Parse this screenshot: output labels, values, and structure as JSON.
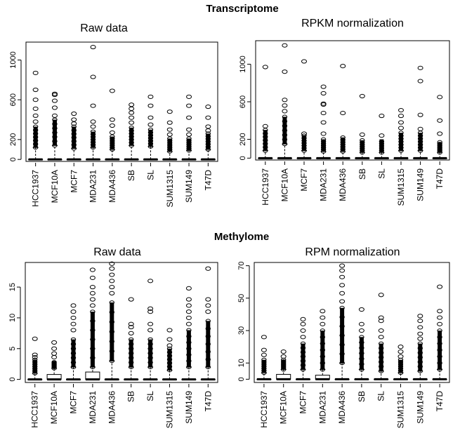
{
  "sections": [
    {
      "title": "Transcriptome"
    },
    {
      "title": "Methylome"
    }
  ],
  "chart_data": [
    {
      "type": "boxplot",
      "section": "Transcriptome",
      "title": "Raw data",
      "ylim": [
        -20,
        1180
      ],
      "yticks": [
        0,
        200,
        600,
        1000
      ],
      "categories": [
        "HCC1937",
        "MCF10A",
        "MCF7",
        "MDA231",
        "MDA436",
        "SB",
        "SL",
        "SUM1315",
        "SUM149",
        "T47D"
      ],
      "boxes": [
        {
          "q1": 0,
          "median": 0,
          "q3": 0,
          "whisker_high": 120,
          "dense_max": 330,
          "outliers": [
            380,
            440,
            510,
            600,
            700,
            870
          ]
        },
        {
          "q1": 0,
          "median": 0,
          "q3": 0,
          "whisker_high": 140,
          "dense_max": 400,
          "outliers": [
            440,
            520,
            590,
            650,
            660
          ]
        },
        {
          "q1": 0,
          "median": 0,
          "q3": 0,
          "whisker_high": 110,
          "dense_max": 330,
          "outliers": [
            360,
            400,
            460
          ]
        },
        {
          "q1": 0,
          "median": 0,
          "q3": 0,
          "whisker_high": 120,
          "dense_max": 280,
          "outliers": [
            330,
            380,
            540,
            830,
            1130
          ]
        },
        {
          "q1": 0,
          "median": 0,
          "q3": 0,
          "whisker_high": 100,
          "dense_max": 230,
          "outliers": [
            270,
            340,
            400,
            690
          ]
        },
        {
          "q1": 0,
          "median": 0,
          "q3": 0,
          "whisker_high": 140,
          "dense_max": 320,
          "outliers": [
            370,
            420,
            470,
            510,
            550
          ]
        },
        {
          "q1": 0,
          "median": 0,
          "q3": 0,
          "whisker_high": 130,
          "dense_max": 300,
          "outliers": [
            350,
            420,
            540,
            630
          ]
        },
        {
          "q1": 0,
          "median": 0,
          "q3": 0,
          "whisker_high": 80,
          "dense_max": 210,
          "outliers": [
            250,
            300,
            370,
            480
          ]
        },
        {
          "q1": 0,
          "median": 0,
          "q3": 0,
          "whisker_high": 90,
          "dense_max": 210,
          "outliers": [
            250,
            300,
            420,
            540,
            630
          ]
        },
        {
          "q1": 0,
          "median": 0,
          "q3": 0,
          "whisker_high": 100,
          "dense_max": 260,
          "outliers": [
            290,
            330,
            420,
            530
          ]
        }
      ]
    },
    {
      "type": "boxplot",
      "section": "Transcriptome",
      "title": "RPKM normalization",
      "ylim": [
        -20,
        1250
      ],
      "yticks": [
        0,
        200,
        600,
        1000
      ],
      "categories": [
        "HCC1937",
        "MCF10A",
        "MCF7",
        "MDA231",
        "MDA436",
        "SB",
        "SL",
        "SUM1315",
        "SUM149",
        "T47D"
      ],
      "boxes": [
        {
          "q1": 0,
          "median": 0,
          "q3": 0,
          "whisker_high": 80,
          "dense_max": 300,
          "outliers": [
            340,
            970
          ]
        },
        {
          "q1": 0,
          "median": 0,
          "q3": 0,
          "whisker_high": 150,
          "dense_max": 440,
          "outliers": [
            500,
            560,
            620,
            920,
            1200
          ]
        },
        {
          "q1": 0,
          "median": 0,
          "q3": 0,
          "whisker_high": 80,
          "dense_max": 240,
          "outliers": [
            260,
            1030
          ]
        },
        {
          "q1": 0,
          "median": 0,
          "q3": 0,
          "whisker_high": 70,
          "dense_max": 200,
          "outliers": [
            260,
            380,
            480,
            570,
            580,
            690,
            760
          ]
        },
        {
          "q1": 0,
          "median": 0,
          "q3": 0,
          "whisker_high": 70,
          "dense_max": 220,
          "outliers": [
            480,
            980
          ]
        },
        {
          "q1": 0,
          "median": 0,
          "q3": 0,
          "whisker_high": 60,
          "dense_max": 190,
          "outliers": [
            250,
            660
          ]
        },
        {
          "q1": 0,
          "median": 0,
          "q3": 0,
          "whisker_high": 60,
          "dense_max": 200,
          "outliers": [
            240,
            450
          ]
        },
        {
          "q1": 0,
          "median": 0,
          "q3": 0,
          "whisker_high": 80,
          "dense_max": 270,
          "outliers": [
            320,
            380,
            450,
            510
          ]
        },
        {
          "q1": 0,
          "median": 0,
          "q3": 0,
          "whisker_high": 80,
          "dense_max": 270,
          "outliers": [
            310,
            460,
            820,
            960
          ]
        },
        {
          "q1": 0,
          "median": 0,
          "q3": 0,
          "whisker_high": 60,
          "dense_max": 170,
          "outliers": [
            260,
            400,
            650
          ]
        }
      ]
    },
    {
      "type": "boxplot",
      "section": "Methylome",
      "title": "Raw data",
      "ylim": [
        -0.5,
        19
      ],
      "yticks": [
        0,
        5,
        10,
        15
      ],
      "categories": [
        "HCC1937",
        "MCF10A",
        "MCF7",
        "MDA231",
        "MDA436",
        "SB",
        "SL",
        "SUM1315",
        "SUM149",
        "T47D"
      ],
      "boxes": [
        {
          "q1": 0,
          "median": 0,
          "q3": 0,
          "whisker_high": 1,
          "dense_max": 3.2,
          "outliers": [
            3.6,
            4.0,
            6.6
          ]
        },
        {
          "q1": 0,
          "median": 0,
          "q3": 0.8,
          "whisker_high": 1.8,
          "dense_max": 3.0,
          "outliers": [
            3.6,
            4.2,
            5.0,
            6.0
          ]
        },
        {
          "q1": 0,
          "median": 0,
          "q3": 0,
          "whisker_high": 2,
          "dense_max": 6.5,
          "outliers": [
            8,
            9,
            10,
            11,
            12
          ]
        },
        {
          "q1": 0,
          "median": 0,
          "q3": 1.2,
          "whisker_high": 2,
          "dense_max": 11,
          "outliers": [
            12,
            13,
            14,
            15,
            16.5,
            17.8
          ]
        },
        {
          "q1": 0,
          "median": 0,
          "q3": 0,
          "whisker_high": 3,
          "dense_max": 12.5,
          "outliers": [
            14,
            15,
            16,
            17,
            18,
            18.8
          ]
        },
        {
          "q1": 0,
          "median": 0,
          "q3": 0,
          "whisker_high": 2,
          "dense_max": 6.5,
          "outliers": [
            7.5,
            8.5,
            9,
            13
          ]
        },
        {
          "q1": 0,
          "median": 0,
          "q3": 0,
          "whisker_high": 2,
          "dense_max": 6.5,
          "outliers": [
            8,
            9,
            11,
            11.5,
            16
          ]
        },
        {
          "q1": 0,
          "median": 0,
          "q3": 0,
          "whisker_high": 1.5,
          "dense_max": 5,
          "outliers": [
            5.5,
            6.5,
            8
          ]
        },
        {
          "q1": 0,
          "median": 0,
          "q3": 0,
          "whisker_high": 2,
          "dense_max": 8,
          "outliers": [
            9,
            10,
            11,
            12,
            13,
            14.8
          ]
        },
        {
          "q1": 0,
          "median": 0,
          "q3": 0,
          "whisker_high": 2,
          "dense_max": 9.5,
          "outliers": [
            11,
            12,
            13,
            18
          ]
        }
      ]
    },
    {
      "type": "boxplot",
      "section": "Methylome",
      "title": "RPM normalization",
      "ylim": [
        -2,
        72
      ],
      "yticks": [
        0,
        10,
        30,
        50,
        70
      ],
      "categories": [
        "HCC1937",
        "MCF10A",
        "MCF7",
        "MDA231",
        "MDA436",
        "SB",
        "SL",
        "SUM1315",
        "SUM149",
        "T47D"
      ],
      "boxes": [
        {
          "q1": 0,
          "median": 0,
          "q3": 0,
          "whisker_high": 4,
          "dense_max": 12,
          "outliers": [
            15,
            18,
            26
          ]
        },
        {
          "q1": 0,
          "median": 0,
          "q3": 3,
          "whisker_high": 6,
          "dense_max": 12,
          "outliers": [
            14,
            17
          ]
        },
        {
          "q1": 0,
          "median": 0,
          "q3": 0,
          "whisker_high": 6,
          "dense_max": 22,
          "outliers": [
            26,
            30,
            34,
            37
          ]
        },
        {
          "q1": 0,
          "median": 0,
          "q3": 2.5,
          "whisker_high": 6,
          "dense_max": 30,
          "outliers": [
            34,
            38,
            42
          ]
        },
        {
          "q1": 0,
          "median": 0,
          "q3": 0,
          "whisker_high": 10,
          "dense_max": 44,
          "outliers": [
            48,
            53,
            58,
            63,
            67,
            70
          ]
        },
        {
          "q1": 0,
          "median": 0,
          "q3": 0,
          "whisker_high": 6,
          "dense_max": 26,
          "outliers": [
            30,
            34,
            43
          ]
        },
        {
          "q1": 0,
          "median": 0,
          "q3": 0,
          "whisker_high": 5,
          "dense_max": 22,
          "outliers": [
            26,
            30,
            36,
            38,
            52
          ]
        },
        {
          "q1": 0,
          "median": 0,
          "q3": 0,
          "whisker_high": 4,
          "dense_max": 12,
          "outliers": [
            14,
            17,
            20
          ]
        },
        {
          "q1": 0,
          "median": 0,
          "q3": 0,
          "whisker_high": 5,
          "dense_max": 22,
          "outliers": [
            25,
            28,
            32,
            36,
            39
          ]
        },
        {
          "q1": 0,
          "median": 0,
          "q3": 0,
          "whisker_high": 6,
          "dense_max": 30,
          "outliers": [
            34,
            38,
            42,
            57
          ]
        }
      ]
    }
  ]
}
